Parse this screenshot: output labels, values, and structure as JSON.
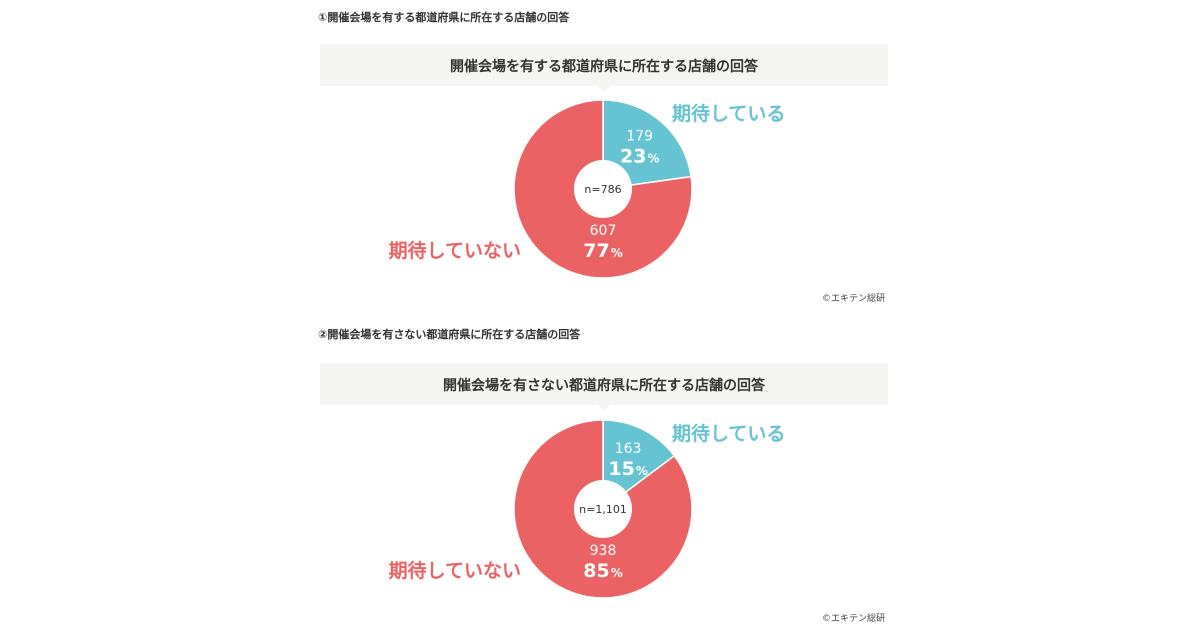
{
  "credit": "©エキテン総研",
  "charts": [
    {
      "heading": "①開催会場を有する都道府県に所在する店舗の回答",
      "title": "開催会場を有する都道府県に所在する店舗の回答"
    },
    {
      "heading": "②開催会場を有さない都道府県に所在する店舗の回答",
      "title": "開催会場を有さない都道府県に所在する店舗の回答"
    }
  ],
  "colors": {
    "expecting": "#66c3d1",
    "not_expecting": "#eb6264",
    "title_band": "#f5f5f3"
  },
  "chart_data": [
    {
      "type": "pie",
      "title": "開催会場を有する都道府県に所在する店舗の回答",
      "center_label": "n=786",
      "slices": [
        {
          "label": "期待している",
          "count": 179,
          "count_label": "179",
          "percent": 23,
          "percent_label": "23",
          "unit": "%",
          "color": "#66c3d1"
        },
        {
          "label": "期待していない",
          "count": 607,
          "count_label": "607",
          "percent": 77,
          "percent_label": "77",
          "unit": "%",
          "color": "#eb6264"
        }
      ]
    },
    {
      "type": "pie",
      "title": "開催会場を有さない都道府県に所在する店舗の回答",
      "center_label": "n=1,101",
      "slices": [
        {
          "label": "期待している",
          "count": 163,
          "count_label": "163",
          "percent": 15,
          "percent_label": "15",
          "unit": "%",
          "color": "#66c3d1"
        },
        {
          "label": "期待していない",
          "count": 938,
          "count_label": "938",
          "percent": 85,
          "percent_label": "85",
          "unit": "%",
          "color": "#eb6264"
        }
      ]
    }
  ]
}
